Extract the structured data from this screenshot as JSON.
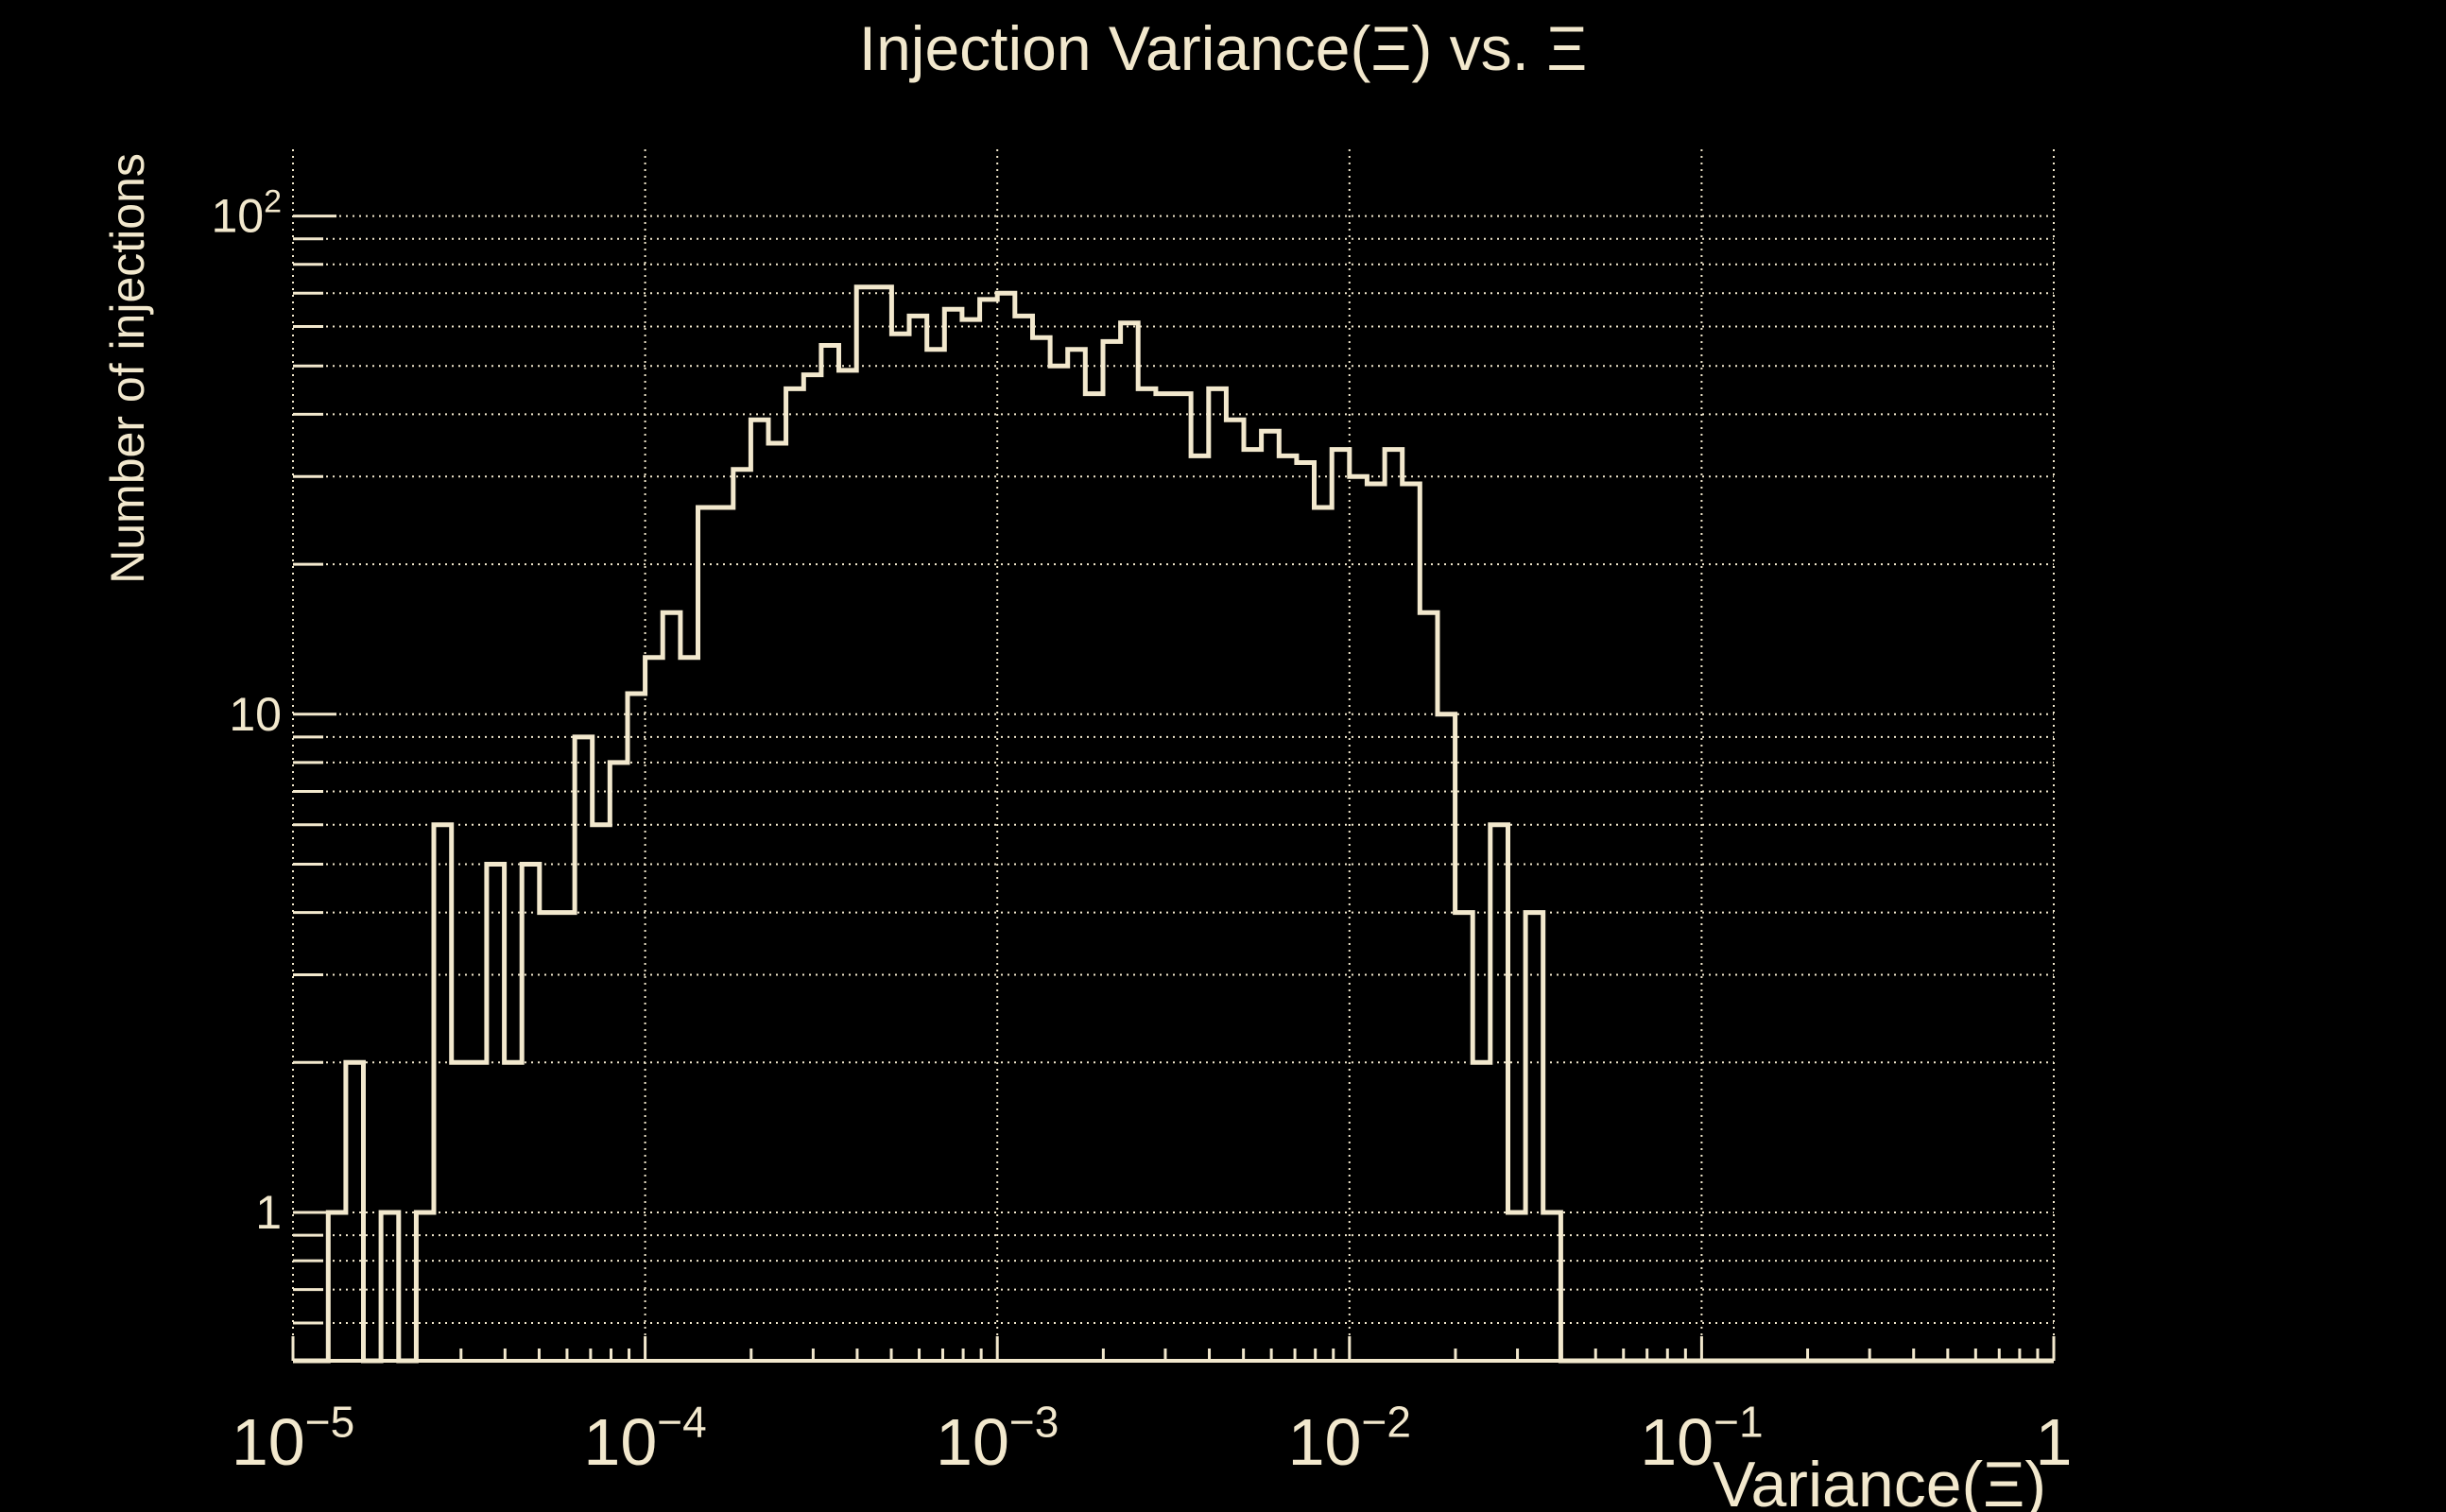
{
  "canvas": {
    "background": "#000000"
  },
  "chart_data": {
    "type": "bar",
    "subtype": "step-outline-histogram",
    "title": "Injection Variance(Ξ) vs. Ξ",
    "xlabel": "Variance(Ξ)",
    "ylabel": "Number of injections",
    "x_scale": "log",
    "y_scale": "log",
    "xlim": [
      1e-05,
      1
    ],
    "ylim": [
      0.5,
      135
    ],
    "bins_per_decade": 20,
    "n_bins": 100,
    "bin_description": "100 log-uniform bins spanning 1e-5 to 1",
    "counts": [
      0,
      0,
      1,
      2,
      0,
      1,
      0,
      1,
      6,
      2,
      2,
      5,
      2,
      5,
      4,
      4,
      9,
      6,
      8,
      11,
      13,
      16,
      13,
      26,
      26,
      31,
      39,
      35,
      45,
      48,
      55,
      49,
      72,
      72,
      58,
      63,
      54,
      65,
      62,
      68,
      70,
      63,
      57,
      50,
      54,
      44,
      56,
      61,
      45,
      44,
      44,
      33,
      45,
      39,
      34,
      37,
      33,
      32,
      26,
      34,
      30,
      29,
      34,
      29,
      16,
      10,
      4,
      2,
      6,
      1,
      4,
      1,
      0,
      0,
      0,
      0,
      0,
      0,
      0,
      0,
      0,
      0,
      0,
      0,
      0,
      0,
      0,
      0,
      0,
      0,
      0,
      0,
      0,
      0,
      0,
      0,
      0,
      0,
      0,
      0
    ],
    "x_tick_labels": [
      {
        "base": "10",
        "exp": "−5",
        "value": 1e-05
      },
      {
        "base": "10",
        "exp": "−4",
        "value": 0.0001
      },
      {
        "base": "10",
        "exp": "−3",
        "value": 0.001
      },
      {
        "base": "10",
        "exp": "−2",
        "value": 0.01
      },
      {
        "base": "10",
        "exp": "−1",
        "value": 0.1
      },
      {
        "base": "1",
        "exp": "",
        "value": 1
      }
    ],
    "y_tick_labels": [
      {
        "base": "10",
        "exp": "2",
        "value": 100
      },
      {
        "base": "10",
        "exp": "",
        "value": 10
      },
      {
        "base": "1",
        "exp": "",
        "value": 1
      }
    ],
    "grid": {
      "horizontal_dotted_at": [
        0.6,
        0.7,
        0.8,
        0.9,
        1,
        2,
        3,
        4,
        5,
        6,
        7,
        8,
        9,
        10,
        20,
        30,
        40,
        50,
        60,
        70,
        80,
        90,
        100
      ],
      "vertical_dotted_at_decades": [
        -5,
        -4,
        -3,
        -2,
        -1,
        0
      ],
      "style": "dotted"
    },
    "legend": null,
    "colors": {
      "foreground": "#f2e8cd",
      "background": "#000000"
    }
  }
}
